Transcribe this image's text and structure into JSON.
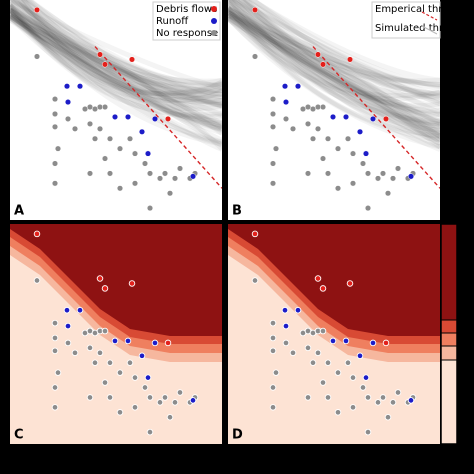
{
  "chart_data": {
    "type": "scatter",
    "panels": [
      "A",
      "B",
      "C",
      "D"
    ],
    "xlim": [
      0,
      212
    ],
    "ylim": [
      0,
      222
    ],
    "series": [
      {
        "name": "Debris flows",
        "color": "#e3201b",
        "x": [
          27,
          90,
          95,
          122,
          158
        ],
        "values": [
          212,
          167,
          157,
          162,
          102
        ]
      },
      {
        "name": "Runoff",
        "color": "#1c1cc8",
        "x": [
          57,
          70,
          58,
          105,
          118,
          132,
          145,
          138,
          183
        ],
        "values": [
          135,
          135,
          119,
          104,
          104,
          89,
          102,
          67,
          44
        ]
      },
      {
        "name": "No response",
        "color": "#8c8c8c",
        "x": [
          27,
          45,
          45,
          45,
          48,
          45,
          45,
          58,
          65,
          75,
          80,
          85,
          90,
          95,
          80,
          85,
          90,
          100,
          95,
          110,
          120,
          125,
          135,
          140,
          150,
          155,
          165,
          170,
          180,
          185,
          80,
          110,
          140,
          125,
          160,
          100
        ],
        "values": [
          165,
          122,
          107,
          94,
          72,
          57,
          37,
          102,
          92,
          112,
          114,
          112,
          114,
          114,
          97,
          82,
          92,
          82,
          62,
          72,
          82,
          67,
          57,
          47,
          42,
          47,
          42,
          52,
          42,
          47,
          47,
          32,
          12,
          37,
          27,
          47
        ]
      }
    ],
    "threshold": {
      "name": "Emperical threshold",
      "color": "#d62728",
      "x": [
        85,
        212
      ],
      "values": [
        175,
        32
      ]
    },
    "simulated": {
      "name": "Simulated threshold",
      "color": "#bbbbbb"
    }
  }
}
